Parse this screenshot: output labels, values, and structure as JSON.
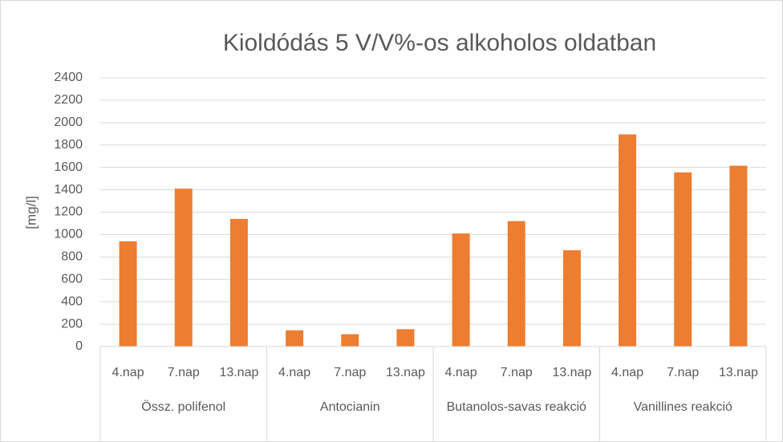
{
  "chart_data": {
    "type": "bar",
    "title": "Kioldódás 5 V/V%-os alkoholos oldatban",
    "y_label": "[mg/l]",
    "categories": [
      "4.nap",
      "7.nap",
      "13.nap",
      "4.nap",
      "7.nap",
      "13.nap",
      "4.nap",
      "7.nap",
      "13.nap",
      "4.nap",
      "7.nap",
      "13.nap"
    ],
    "groups": [
      "Össz. polifenol",
      "Antocianin",
      "Butanolos-savas reakció",
      "Vanillines reakció"
    ],
    "values": [
      940,
      1410,
      1140,
      145,
      110,
      155,
      1010,
      1120,
      860,
      1895,
      1555,
      1615
    ],
    "color": "#ed7d31",
    "ylim": [
      0,
      2400
    ],
    "yticks": [
      0,
      200,
      400,
      600,
      800,
      1000,
      1200,
      1400,
      1600,
      1800,
      2000,
      2200,
      2400
    ],
    "grid": true
  }
}
